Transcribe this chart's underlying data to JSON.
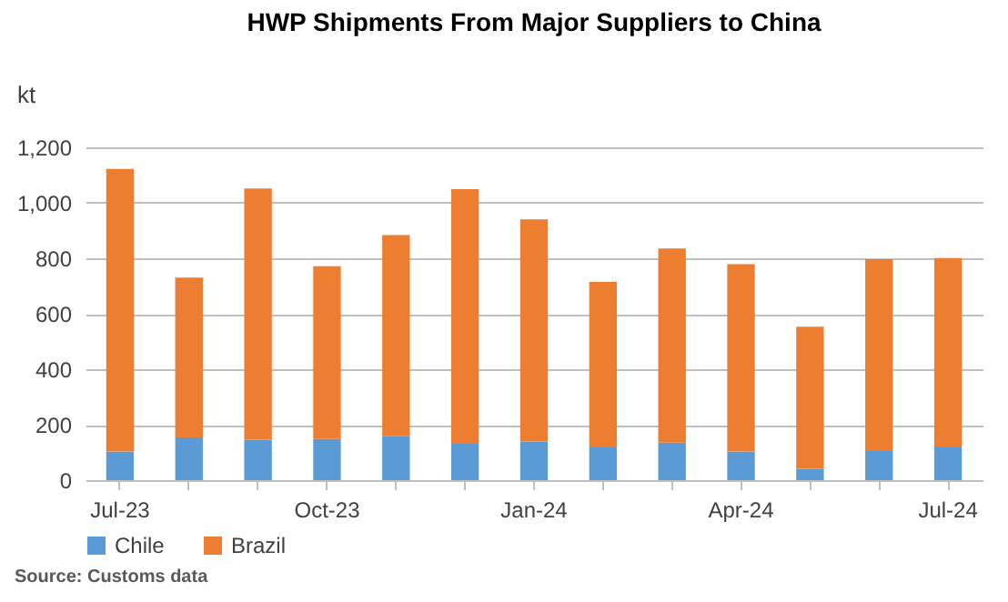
{
  "chart_data": {
    "type": "bar",
    "title": "HWP Shipments From Major Suppliers to China",
    "ylabel": "kt",
    "categories": [
      "Jul-23",
      null,
      null,
      "Oct-23",
      null,
      null,
      "Jan-24",
      null,
      null,
      "Apr-24",
      null,
      null,
      "Jul-24"
    ],
    "series": [
      {
        "name": "Chile",
        "color": "#5b9bd5",
        "values": [
          103,
          154,
          146,
          148,
          158,
          131,
          139,
          118,
          135,
          103,
          41,
          105,
          118
        ]
      },
      {
        "name": "Brazil",
        "color": "#ed7d31",
        "values": [
          1019,
          576,
          906,
          623,
          726,
          918,
          801,
          597,
          700,
          676,
          512,
          692,
          683
        ]
      }
    ],
    "stacked": true,
    "ylim": [
      0,
      1200
    ],
    "yticks": [
      0,
      200,
      400,
      600,
      800,
      {
        "value": 1000,
        "label": "1,000"
      },
      {
        "value": 1200,
        "label": "1,200"
      }
    ],
    "grid": "y",
    "legend": "bottom",
    "annotations": [
      "Source: Customs data"
    ]
  }
}
